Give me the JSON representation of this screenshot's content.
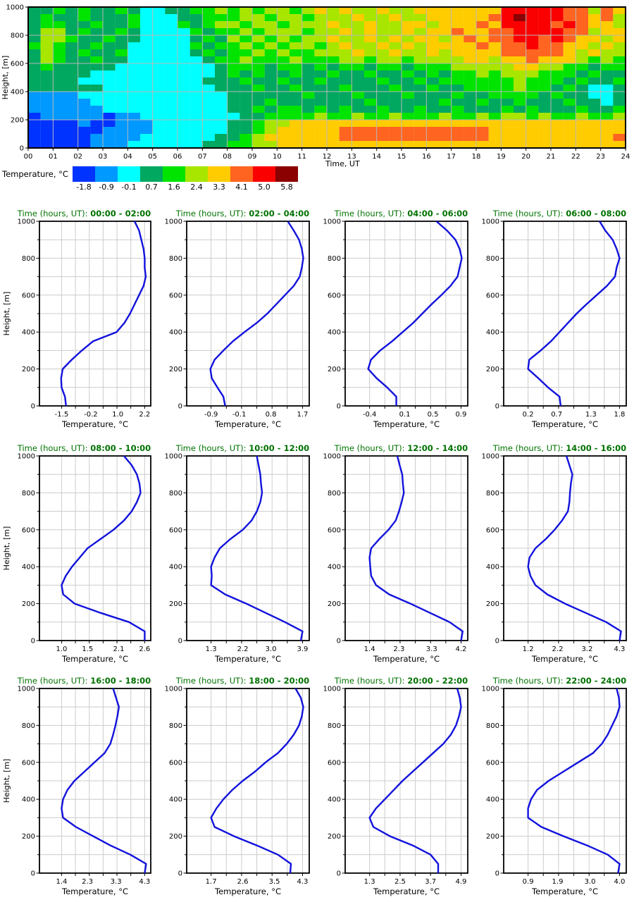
{
  "heatmap": {
    "ylabel": "Height, [m]",
    "xlabel": "Time, UT"
  },
  "colorbar": {
    "label": "Temperature, °C",
    "tick_labels": [
      "-1.8",
      "-0.9",
      "-0.1",
      "0.7",
      "1.6",
      "2.4",
      "3.3",
      "4.1",
      "5.0",
      "5.8"
    ],
    "colors": [
      "#0033ff",
      "#0099ff",
      "#00ffff",
      "#00a860",
      "#00e400",
      "#a8e600",
      "#ffcc00",
      "#ff6420",
      "#fa0000",
      "#8b0000"
    ]
  },
  "profiles": {
    "title_prefix": "Time (hours, UT): ",
    "ylabel": "Height, [m]",
    "xlabel": "Temperature, °C"
  },
  "chart_data": [
    {
      "type": "heatmap",
      "title": "",
      "xlabel": "Time, UT",
      "ylabel": "Height, [m]",
      "x_hours_range": [
        0,
        24
      ],
      "x_tick_labels": [
        "00",
        "01",
        "02",
        "03",
        "04",
        "05",
        "06",
        "07",
        "08",
        "09",
        "10",
        "11",
        "12",
        "13",
        "14",
        "15",
        "16",
        "17",
        "18",
        "19",
        "20",
        "21",
        "22",
        "23",
        "24"
      ],
      "y_ticks": [
        0,
        200,
        400,
        600,
        800,
        1000
      ],
      "levels_c": [
        -1.8,
        -0.9,
        -0.1,
        0.7,
        1.6,
        2.4,
        3.3,
        4.1,
        5.0,
        5.8
      ],
      "palette": [
        "#0033ff",
        "#0099ff",
        "#00ffff",
        "#00a860",
        "#00e400",
        "#a8e600",
        "#ffcc00",
        "#ff6420",
        "#fa0000",
        "#8b0000"
      ],
      "grid_meta": {
        "cols": 48,
        "col_dt_hours": 0.5,
        "rows": 20,
        "row_dz_m": 50,
        "encoding": "each character is an index 0-9 into levels_c (temperature bin, °C) and palette; rows ordered top (950-1000 m) to bottom (0-50 m)"
      },
      "grid_rows_top_to_bottom": [
        "334343343223344545455456565565566666668888877576",
        "343343334222334445545545556556556666678988877675",
        "344334334222434554554555655655665666768888787665",
        "355343343222243445455545565655656676677888877566",
        "355433433222234354545455655656566567677887876656",
        "454334332222243445454554565565656666767787766565",
        "354343342222234344545445556556556566667777765655",
        "354334332222223445444544455455455556656676665454",
        "343333322222222344434434344344344455555665544344",
        "333332222222222343433433433433434344545554443433",
        "333322222222223334334334333343343444444544434334",
        "333333222222222333433433343334334334444544343223",
        "111122222222222233333343334333433343344443433223",
        "111112222222222233343333333433333433433433343323",
        "111111222222222233434434343343343343334343334334",
        "011111011222222223344445445445444544545545445445",
        "000010011122222233455666666666666666666666666666",
        "000000111122222233456666677777777777766666666666",
        "000001111222222334566666677777777777766666666667",
        "000001112222223344556666666666666666666666666666"
      ]
    },
    {
      "type": "line",
      "time_range": "00:00 - 02:00",
      "x_ticks": [
        "-1.5",
        "-0.2",
        "1.0",
        "2.2"
      ],
      "heights_m": [
        0,
        50,
        100,
        150,
        200,
        250,
        300,
        350,
        400,
        450,
        500,
        550,
        600,
        650,
        700,
        750,
        800,
        850,
        900,
        950,
        1000
      ],
      "temps_c": [
        -1.3,
        -1.35,
        -1.5,
        -1.52,
        -1.45,
        -1.05,
        -0.6,
        -0.1,
        0.95,
        1.3,
        1.55,
        1.75,
        1.95,
        2.15,
        2.25,
        2.2,
        2.2,
        2.15,
        2.05,
        1.95,
        1.75
      ]
    },
    {
      "type": "line",
      "time_range": "02:00 - 04:00",
      "x_ticks": [
        "-0.9",
        "-0.1",
        "0.8",
        "1.7"
      ],
      "heights_m": [
        0,
        50,
        100,
        150,
        200,
        250,
        300,
        350,
        400,
        450,
        500,
        550,
        600,
        650,
        700,
        750,
        800,
        850,
        900,
        950,
        1000
      ],
      "temps_c": [
        -0.5,
        -0.55,
        -0.72,
        -0.88,
        -0.92,
        -0.8,
        -0.55,
        -0.28,
        0.05,
        0.4,
        0.7,
        0.95,
        1.2,
        1.45,
        1.62,
        1.68,
        1.72,
        1.68,
        1.6,
        1.45,
        1.28
      ]
    },
    {
      "type": "line",
      "time_range": "04:00 - 06:00",
      "x_ticks": [
        "-0.4",
        "0.1",
        "0.5",
        "0.9"
      ],
      "heights_m": [
        0,
        50,
        100,
        150,
        200,
        250,
        300,
        350,
        400,
        450,
        500,
        550,
        600,
        650,
        700,
        750,
        800,
        850,
        900,
        950,
        1000
      ],
      "temps_c": [
        -0.02,
        -0.02,
        -0.15,
        -0.3,
        -0.42,
        -0.38,
        -0.25,
        -0.08,
        0.07,
        0.22,
        0.35,
        0.48,
        0.62,
        0.75,
        0.85,
        0.88,
        0.91,
        0.88,
        0.82,
        0.7,
        0.55
      ]
    },
    {
      "type": "line",
      "time_range": "06:00 - 08:00",
      "x_ticks": [
        "0.2",
        "0.7",
        "1.3",
        "1.8"
      ],
      "heights_m": [
        0,
        50,
        100,
        150,
        200,
        250,
        300,
        350,
        400,
        450,
        500,
        550,
        600,
        650,
        700,
        750,
        800,
        850,
        900,
        950,
        1000
      ],
      "temps_c": [
        0.77,
        0.75,
        0.55,
        0.38,
        0.2,
        0.22,
        0.42,
        0.6,
        0.75,
        0.9,
        1.05,
        1.22,
        1.4,
        1.58,
        1.72,
        1.75,
        1.8,
        1.75,
        1.68,
        1.55,
        1.45
      ]
    },
    {
      "type": "line",
      "time_range": "08:00 - 10:00",
      "x_ticks": [
        "1.0",
        "1.5",
        "2.1",
        "2.6"
      ],
      "heights_m": [
        0,
        50,
        100,
        150,
        200,
        250,
        300,
        350,
        400,
        450,
        500,
        550,
        600,
        650,
        700,
        750,
        800,
        850,
        900,
        950,
        1000
      ],
      "temps_c": [
        2.6,
        2.6,
        2.3,
        1.75,
        1.25,
        1.03,
        1.0,
        1.08,
        1.2,
        1.35,
        1.5,
        1.75,
        2.0,
        2.2,
        2.35,
        2.45,
        2.52,
        2.5,
        2.45,
        2.35,
        2.2
      ]
    },
    {
      "type": "line",
      "time_range": "10:00 - 12:00",
      "x_ticks": [
        "1.3",
        "2.2",
        "3.0",
        "3.9"
      ],
      "heights_m": [
        0,
        50,
        100,
        150,
        200,
        250,
        300,
        350,
        400,
        450,
        500,
        550,
        600,
        650,
        700,
        750,
        800,
        850,
        900,
        950,
        1000
      ],
      "temps_c": [
        3.85,
        3.9,
        3.4,
        2.85,
        2.3,
        1.7,
        1.3,
        1.32,
        1.3,
        1.4,
        1.55,
        1.85,
        2.2,
        2.45,
        2.6,
        2.7,
        2.75,
        2.72,
        2.7,
        2.65,
        2.6
      ]
    },
    {
      "type": "line",
      "time_range": "12:00 - 14:00",
      "x_ticks": [
        "1.4",
        "2.3",
        "3.3",
        "4.2"
      ],
      "heights_m": [
        0,
        50,
        100,
        150,
        200,
        250,
        300,
        350,
        400,
        450,
        500,
        550,
        600,
        650,
        700,
        750,
        800,
        850,
        900,
        950,
        1000
      ],
      "temps_c": [
        4.2,
        4.25,
        3.85,
        3.25,
        2.65,
        2.0,
        1.6,
        1.45,
        1.42,
        1.4,
        1.45,
        1.7,
        1.98,
        2.2,
        2.3,
        2.38,
        2.45,
        2.42,
        2.4,
        2.32,
        2.25
      ]
    },
    {
      "type": "line",
      "time_range": "14:00 - 16:00",
      "x_ticks": [
        "1.2",
        "2.2",
        "3.2",
        "4.3"
      ],
      "heights_m": [
        0,
        50,
        100,
        150,
        200,
        250,
        300,
        350,
        400,
        450,
        500,
        550,
        600,
        650,
        700,
        750,
        800,
        850,
        900,
        950,
        1000
      ],
      "temps_c": [
        4.3,
        4.35,
        3.85,
        3.15,
        2.45,
        1.85,
        1.45,
        1.28,
        1.2,
        1.25,
        1.45,
        1.8,
        2.1,
        2.35,
        2.55,
        2.6,
        2.62,
        2.65,
        2.7,
        2.6,
        2.5
      ]
    },
    {
      "type": "line",
      "time_range": "16:00 - 18:00",
      "x_ticks": [
        "1.4",
        "2.3",
        "3.3",
        "4.3"
      ],
      "heights_m": [
        0,
        50,
        100,
        150,
        200,
        250,
        300,
        350,
        400,
        450,
        500,
        550,
        600,
        650,
        700,
        750,
        800,
        850,
        900,
        950,
        1000
      ],
      "temps_c": [
        4.3,
        4.35,
        3.8,
        3.1,
        2.5,
        1.9,
        1.45,
        1.4,
        1.45,
        1.6,
        1.85,
        2.2,
        2.55,
        2.9,
        3.1,
        3.2,
        3.28,
        3.35,
        3.4,
        3.3,
        3.2
      ]
    },
    {
      "type": "line",
      "time_range": "18:00 - 20:00",
      "x_ticks": [
        "1.7",
        "2.6",
        "3.5",
        "4.3"
      ],
      "heights_m": [
        0,
        50,
        100,
        150,
        200,
        250,
        300,
        350,
        400,
        450,
        500,
        550,
        600,
        650,
        700,
        750,
        800,
        850,
        900,
        950,
        1000
      ],
      "temps_c": [
        3.95,
        3.97,
        3.6,
        3.0,
        2.35,
        1.8,
        1.7,
        1.85,
        2.05,
        2.3,
        2.6,
        2.95,
        3.25,
        3.6,
        3.85,
        4.05,
        4.2,
        4.28,
        4.32,
        4.25,
        4.1
      ]
    },
    {
      "type": "line",
      "time_range": "20:00 - 22:00",
      "x_ticks": [
        "1.3",
        "2.5",
        "3.7",
        "4.9"
      ],
      "heights_m": [
        0,
        50,
        100,
        150,
        200,
        250,
        300,
        350,
        400,
        450,
        500,
        550,
        600,
        650,
        700,
        750,
        800,
        850,
        900,
        950,
        1000
      ],
      "temps_c": [
        4.0,
        4.0,
        3.7,
        3.0,
        2.1,
        1.45,
        1.3,
        1.55,
        1.9,
        2.25,
        2.6,
        3.0,
        3.4,
        3.8,
        4.2,
        4.5,
        4.7,
        4.82,
        4.9,
        4.85,
        4.75
      ]
    },
    {
      "type": "line",
      "time_range": "22:00 - 24:00",
      "x_ticks": [
        "0.9",
        "1.9",
        "3.0",
        "4.0"
      ],
      "heights_m": [
        0,
        50,
        100,
        150,
        200,
        250,
        300,
        350,
        400,
        450,
        500,
        550,
        600,
        650,
        700,
        750,
        800,
        850,
        900,
        950,
        1000
      ],
      "temps_c": [
        3.95,
        4.0,
        3.6,
        2.9,
        2.1,
        1.35,
        0.9,
        0.9,
        1.0,
        1.2,
        1.6,
        2.1,
        2.6,
        3.1,
        3.4,
        3.6,
        3.75,
        3.9,
        4.0,
        3.98,
        3.9
      ]
    }
  ]
}
